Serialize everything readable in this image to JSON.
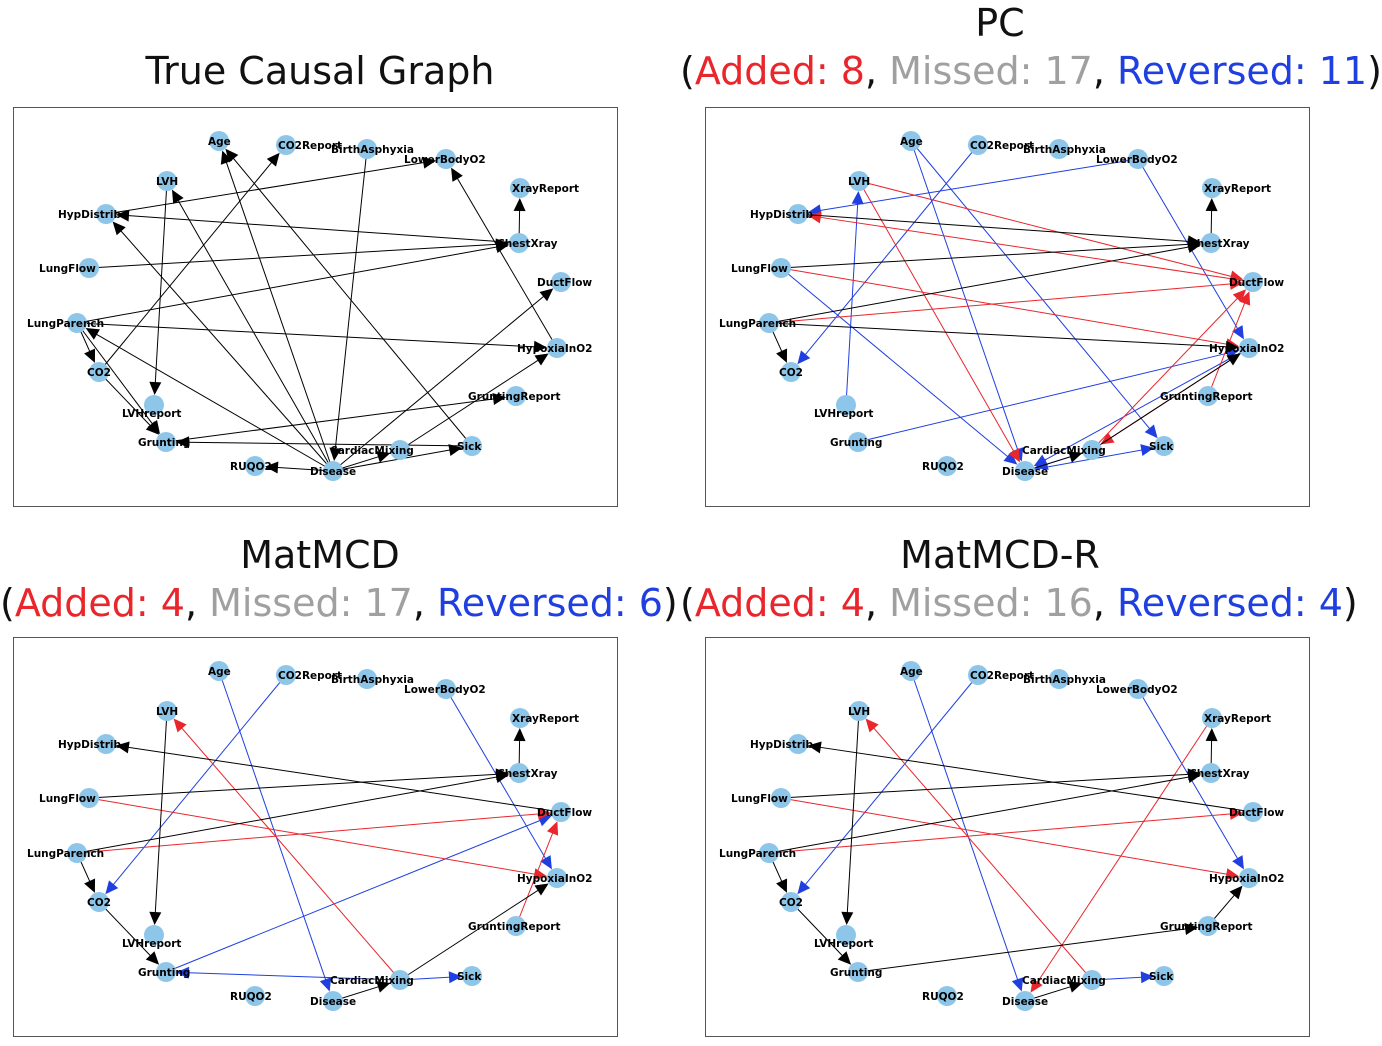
{
  "panels": [
    {
      "id": "true",
      "title": "True Causal Graph",
      "stats": null
    },
    {
      "id": "pc",
      "title": "PC",
      "stats": {
        "added_label": "Added: 8",
        "missed_label": "Missed: 17",
        "reversed_label": "Reversed: 11"
      }
    },
    {
      "id": "matmcd",
      "title": "MatMCD",
      "stats": {
        "added_label": "Added: 4",
        "missed_label": "Missed: 17",
        "reversed_label": "Reversed: 6"
      }
    },
    {
      "id": "matmcdr",
      "title": "MatMCD-R",
      "stats": {
        "added_label": "Added: 4",
        "missed_label": "Missed: 16",
        "reversed_label": "Reversed: 4"
      }
    }
  ],
  "colors": {
    "node": "#8ec6ea",
    "correct_edge": "#000000",
    "added": "#e8262c",
    "missed": "#a0a0a0",
    "reversed": "#1f3fe0"
  },
  "nodes": [
    "Age",
    "CO2Report",
    "BirthAsphyxia",
    "LowerBodyO2",
    "XrayReport",
    "ChestXray",
    "DuctFlow",
    "HypoxiaInO2",
    "GruntingReport",
    "Sick",
    "CardiacMixing",
    "Disease",
    "RUQO2",
    "Grunting",
    "LVHreport",
    "CO2",
    "LungParench",
    "LungFlow",
    "HypDistrib",
    "LVH"
  ],
  "graphs": {
    "true": [
      [
        "Disease",
        "Age",
        "k"
      ],
      [
        "Disease",
        "LVH",
        "k"
      ],
      [
        "Disease",
        "HypDistrib",
        "k"
      ],
      [
        "Disease",
        "LungParench",
        "k"
      ],
      [
        "Disease",
        "RUQO2",
        "k"
      ],
      [
        "Disease",
        "Sick",
        "k"
      ],
      [
        "Disease",
        "DuctFlow",
        "k"
      ],
      [
        "Disease",
        "CardiacMixing",
        "k"
      ],
      [
        "Sick",
        "Age",
        "k"
      ],
      [
        "BirthAsphyxia",
        "Disease",
        "k"
      ],
      [
        "LVH",
        "LVHreport",
        "k"
      ],
      [
        "ChestXray",
        "XrayReport",
        "k"
      ],
      [
        "LungParench",
        "ChestXray",
        "k"
      ],
      [
        "LungParench",
        "CO2",
        "k"
      ],
      [
        "LungParench",
        "HypoxiaInO2",
        "k"
      ],
      [
        "LungFlow",
        "ChestXray",
        "k"
      ],
      [
        "CO2",
        "CO2Report",
        "k"
      ],
      [
        "Grunting",
        "GruntingReport",
        "k"
      ],
      [
        "Sick",
        "Grunting",
        "k"
      ],
      [
        "HypDistrib",
        "LowerBodyO2",
        "k"
      ],
      [
        "HypoxiaInO2",
        "LowerBodyO2",
        "k"
      ],
      [
        "ChestXray",
        "HypDistrib",
        "k"
      ],
      [
        "CardiacMixing",
        "HypoxiaInO2",
        "k"
      ],
      [
        "CO2",
        "Grunting",
        "k"
      ],
      [
        "LungParench",
        "Grunting",
        "k"
      ]
    ],
    "pc": [
      [
        "Age",
        "Disease",
        "b"
      ],
      [
        "Age",
        "Sick",
        "b"
      ],
      [
        "CO2Report",
        "CO2",
        "b"
      ],
      [
        "LowerBodyO2",
        "HypDistrib",
        "b"
      ],
      [
        "LowerBodyO2",
        "HypoxiaInO2",
        "b"
      ],
      [
        "LungFlow",
        "Disease",
        "b"
      ],
      [
        "Grunting",
        "HypoxiaInO2",
        "b"
      ],
      [
        "CardiacMixing",
        "Disease",
        "b"
      ],
      [
        "LVHreport",
        "LVH",
        "b"
      ],
      [
        "Disease",
        "Sick",
        "b"
      ],
      [
        "HypoxiaInO2",
        "Disease",
        "b"
      ],
      [
        "LVH",
        "DuctFlow",
        "r"
      ],
      [
        "LVH",
        "Disease",
        "r"
      ],
      [
        "LungParench",
        "DuctFlow",
        "r"
      ],
      [
        "LungFlow",
        "HypoxiaInO2",
        "r"
      ],
      [
        "CardiacMixing",
        "DuctFlow",
        "r"
      ],
      [
        "GruntingReport",
        "DuctFlow",
        "r"
      ],
      [
        "DuctFlow",
        "HypDistrib",
        "r"
      ],
      [
        "HypoxiaInO2",
        "CardiacMixing",
        "r"
      ],
      [
        "ChestXray",
        "XrayReport",
        "k"
      ],
      [
        "LungParench",
        "ChestXray",
        "k"
      ],
      [
        "LungFlow",
        "ChestXray",
        "k"
      ],
      [
        "HypDistrib",
        "ChestXray",
        "k"
      ],
      [
        "LungParench",
        "CO2",
        "k"
      ],
      [
        "LungParench",
        "HypoxiaInO2",
        "k"
      ],
      [
        "CardiacMixing",
        "HypoxiaInO2",
        "k"
      ],
      [
        "Disease",
        "CardiacMixing",
        "k"
      ]
    ],
    "matmcd": [
      [
        "Age",
        "Disease",
        "b"
      ],
      [
        "CO2Report",
        "CO2",
        "b"
      ],
      [
        "LowerBodyO2",
        "HypoxiaInO2",
        "b"
      ],
      [
        "CardiacMixing",
        "Grunting",
        "b"
      ],
      [
        "CardiacMixing",
        "Sick",
        "b"
      ],
      [
        "Grunting",
        "DuctFlow",
        "b"
      ],
      [
        "CardiacMixing",
        "LVH",
        "r"
      ],
      [
        "LungParench",
        "DuctFlow",
        "r"
      ],
      [
        "LungFlow",
        "HypoxiaInO2",
        "r"
      ],
      [
        "GruntingReport",
        "DuctFlow",
        "r"
      ],
      [
        "ChestXray",
        "XrayReport",
        "k"
      ],
      [
        "LungParench",
        "ChestXray",
        "k"
      ],
      [
        "LungFlow",
        "ChestXray",
        "k"
      ],
      [
        "DuctFlow",
        "HypDistrib",
        "k"
      ],
      [
        "LungParench",
        "CO2",
        "k"
      ],
      [
        "CO2",
        "Grunting",
        "k"
      ],
      [
        "LVH",
        "LVHreport",
        "k"
      ],
      [
        "CardiacMixing",
        "HypoxiaInO2",
        "k"
      ],
      [
        "Disease",
        "CardiacMixing",
        "k"
      ]
    ],
    "matmcdr": [
      [
        "Age",
        "Disease",
        "b"
      ],
      [
        "CO2Report",
        "CO2",
        "b"
      ],
      [
        "LowerBodyO2",
        "HypoxiaInO2",
        "b"
      ],
      [
        "CardiacMixing",
        "Sick",
        "b"
      ],
      [
        "CardiacMixing",
        "LVH",
        "r"
      ],
      [
        "XrayReport",
        "Disease",
        "r"
      ],
      [
        "LungFlow",
        "HypoxiaInO2",
        "r"
      ],
      [
        "LungParench",
        "DuctFlow",
        "r"
      ],
      [
        "ChestXray",
        "XrayReport",
        "k"
      ],
      [
        "LungParench",
        "ChestXray",
        "k"
      ],
      [
        "LungFlow",
        "ChestXray",
        "k"
      ],
      [
        "DuctFlow",
        "HypDistrib",
        "k"
      ],
      [
        "LungParench",
        "CO2",
        "k"
      ],
      [
        "CO2",
        "Grunting",
        "k"
      ],
      [
        "LVH",
        "LVHreport",
        "k"
      ],
      [
        "Grunting",
        "GruntingReport",
        "k"
      ],
      [
        "GruntingReport",
        "HypoxiaInO2",
        "k"
      ],
      [
        "Disease",
        "CardiacMixing",
        "k"
      ]
    ]
  }
}
